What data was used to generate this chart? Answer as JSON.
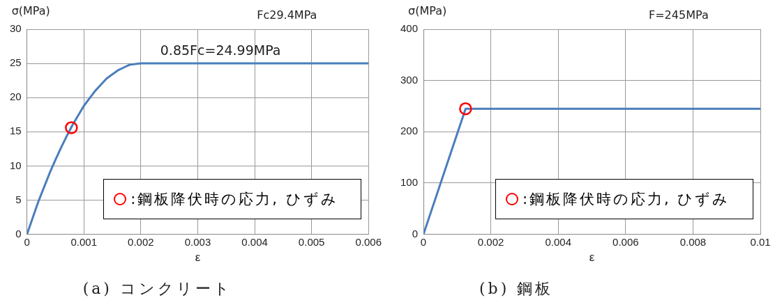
{
  "chart_data": [
    {
      "type": "line",
      "title": "(a) コンクリート",
      "xlabel": "ε",
      "ylabel": "σ(MPa)",
      "grid": true,
      "legend": "bottom right",
      "annotations": [
        "Fc29.4MPa",
        {
          "text": "0.85Fc=24.99MPa",
          "x": 0.0034,
          "y": 24.99
        }
      ],
      "xlim": [
        0,
        0.006
      ],
      "xticks": [
        0,
        0.001,
        0.002,
        0.003,
        0.004,
        0.005,
        0.006
      ],
      "ylim": [
        0,
        30
      ],
      "yticks": [
        0,
        5,
        10,
        15,
        20,
        25,
        30
      ],
      "series": [
        {
          "type": "line",
          "color": "#4a7ebb",
          "marker": "none",
          "x": [
            0,
            0.0001,
            0.0002,
            0.0003,
            0.0004,
            0.0005,
            0.0006,
            0.0007,
            0.0008,
            0.0009,
            0.001,
            0.0011,
            0.0012,
            0.0013,
            0.0014,
            0.0015,
            0.0016,
            0.0017,
            0.0018,
            0.0019,
            0.002,
            0.006
          ],
          "values": [
            0,
            2.4,
            4.8,
            6.9,
            9.0,
            10.9,
            12.7,
            14.4,
            16.0,
            17.4,
            18.8,
            19.9,
            21.0,
            21.9,
            22.8,
            23.4,
            24.0,
            24.4,
            24.8,
            24.9,
            25,
            25
          ]
        },
        {
          "type": "scatter",
          "name": ":鋼板降伏時の応力, ひずみ",
          "color": "#ff0000",
          "marker": "circle",
          "x": [
            0.00078
          ],
          "values": [
            15.6
          ]
        }
      ]
    },
    {
      "type": "line",
      "title": "(b) 鋼板",
      "xlabel": "ε",
      "ylabel": "σ(MPa)",
      "grid": true,
      "legend": "bottom right",
      "annotations": [
        "F=245MPa"
      ],
      "xlim": [
        0,
        0.01
      ],
      "xticks": [
        0,
        0.002,
        0.004,
        0.006,
        0.008,
        0.01
      ],
      "ylim": [
        0,
        400
      ],
      "yticks": [
        0,
        100,
        200,
        300,
        400
      ],
      "series": [
        {
          "type": "line",
          "color": "#4a7ebb",
          "marker": "none",
          "x": [
            0,
            0.00125,
            0.01
          ],
          "values": [
            0,
            245,
            245
          ]
        },
        {
          "type": "scatter",
          "name": ":鋼板降伏時の応力, ひずみ",
          "color": "#ff0000",
          "marker": "circle",
          "x": [
            0.00125
          ],
          "values": [
            245
          ]
        }
      ]
    }
  ]
}
